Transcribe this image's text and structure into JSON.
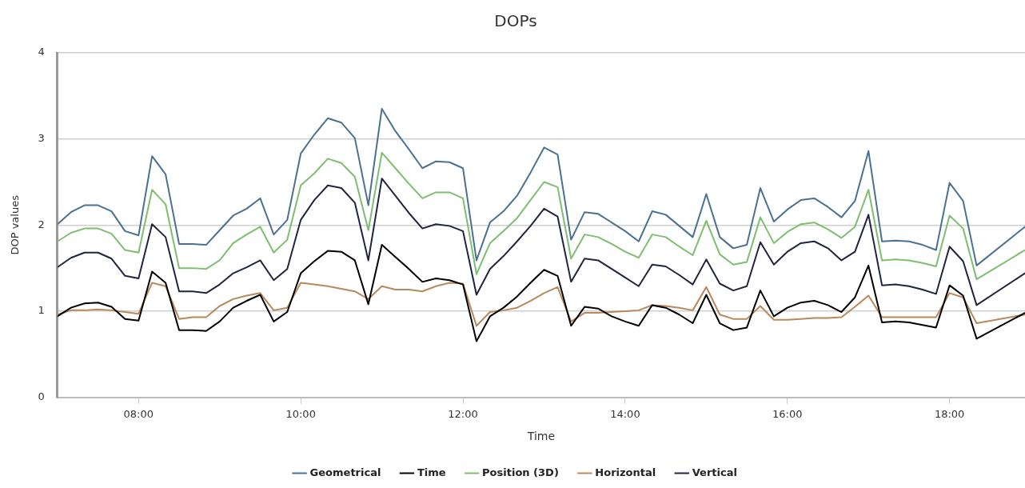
{
  "chart_data": {
    "type": "line",
    "title": "DOPs",
    "xlabel": "Time",
    "ylabel": "DOP values",
    "x": [
      7,
      7.1667,
      7.3333,
      7.5,
      7.6667,
      7.8333,
      8,
      8.1667,
      8.3333,
      8.5,
      8.6667,
      8.8333,
      9,
      9.1667,
      9.3333,
      9.5,
      9.6667,
      9.8333,
      10,
      10.1667,
      10.3333,
      10.5,
      10.6667,
      10.8333,
      11,
      11.1667,
      11.3333,
      11.5,
      11.6667,
      11.8333,
      12,
      12.1667,
      12.3333,
      12.5,
      12.6667,
      12.8333,
      13,
      13.1667,
      13.3333,
      13.5,
      13.6667,
      13.8333,
      14,
      14.1667,
      14.3333,
      14.5,
      14.6667,
      14.8333,
      15,
      15.1667,
      15.3333,
      15.5,
      15.6667,
      15.8333,
      16,
      16.1667,
      16.3333,
      16.5,
      16.6667,
      16.8333,
      17,
      17.1667,
      17.3333,
      17.5,
      17.6667,
      17.8333,
      18,
      18.1667,
      18.3333,
      18.93
    ],
    "series": [
      {
        "name": "Geometrical",
        "color": "#4a7191",
        "values": [
          2.01,
          2.15,
          2.23,
          2.23,
          2.16,
          1.93,
          1.88,
          2.8,
          2.59,
          1.78,
          1.78,
          1.77,
          1.94,
          2.11,
          2.19,
          2.31,
          1.89,
          2.06,
          2.83,
          3.05,
          3.24,
          3.19,
          3.01,
          2.23,
          3.35,
          3.09,
          2.88,
          2.66,
          2.74,
          2.73,
          2.66,
          1.59,
          2.03,
          2.16,
          2.34,
          2.61,
          2.9,
          2.82,
          1.83,
          2.15,
          2.13,
          2.03,
          1.93,
          1.81,
          2.16,
          2.12,
          1.99,
          1.86,
          2.36,
          1.86,
          1.73,
          1.77,
          2.43,
          2.04,
          2.18,
          2.29,
          2.31,
          2.21,
          2.09,
          2.28,
          2.86,
          1.81,
          1.82,
          1.81,
          1.77,
          1.71,
          2.49,
          2.28,
          1.53,
          1.98
        ]
      },
      {
        "name": "Time",
        "color": "#000000",
        "values": [
          0.94,
          1.04,
          1.09,
          1.1,
          1.05,
          0.91,
          0.89,
          1.46,
          1.33,
          0.78,
          0.78,
          0.77,
          0.88,
          1.04,
          1.12,
          1.19,
          0.88,
          0.99,
          1.44,
          1.58,
          1.7,
          1.69,
          1.59,
          1.08,
          1.77,
          1.63,
          1.49,
          1.34,
          1.38,
          1.36,
          1.31,
          0.65,
          0.94,
          1.04,
          1.17,
          1.33,
          1.48,
          1.41,
          0.83,
          1.05,
          1.03,
          0.94,
          0.88,
          0.83,
          1.07,
          1.04,
          0.96,
          0.86,
          1.19,
          0.86,
          0.78,
          0.81,
          1.24,
          0.94,
          1.04,
          1.1,
          1.12,
          1.07,
          0.99,
          1.16,
          1.53,
          0.87,
          0.88,
          0.87,
          0.84,
          0.81,
          1.3,
          1.18,
          0.68,
          0.98
        ]
      },
      {
        "name": "Position (3D)",
        "color": "#7dbf6e",
        "values": [
          1.81,
          1.91,
          1.96,
          1.96,
          1.9,
          1.71,
          1.68,
          2.41,
          2.24,
          1.5,
          1.5,
          1.49,
          1.59,
          1.79,
          1.89,
          1.98,
          1.68,
          1.83,
          2.46,
          2.6,
          2.77,
          2.72,
          2.56,
          1.94,
          2.84,
          2.66,
          2.48,
          2.31,
          2.38,
          2.38,
          2.31,
          1.43,
          1.79,
          1.93,
          2.08,
          2.29,
          2.5,
          2.44,
          1.61,
          1.89,
          1.86,
          1.78,
          1.69,
          1.62,
          1.89,
          1.86,
          1.75,
          1.65,
          2.05,
          1.66,
          1.54,
          1.57,
          2.09,
          1.79,
          1.92,
          2.01,
          2.03,
          1.95,
          1.85,
          1.98,
          2.41,
          1.59,
          1.6,
          1.59,
          1.56,
          1.52,
          2.11,
          1.96,
          1.37,
          1.71
        ]
      },
      {
        "name": "Horizontal",
        "color": "#b8895a",
        "values": [
          0.96,
          1.01,
          1.01,
          1.02,
          1.01,
          0.99,
          0.97,
          1.33,
          1.29,
          0.91,
          0.93,
          0.93,
          1.06,
          1.14,
          1.18,
          1.21,
          1.01,
          1.04,
          1.33,
          1.31,
          1.29,
          1.26,
          1.23,
          1.14,
          1.29,
          1.25,
          1.25,
          1.23,
          1.29,
          1.33,
          1.32,
          0.83,
          0.99,
          1.01,
          1.04,
          1.12,
          1.21,
          1.28,
          0.88,
          0.98,
          0.98,
          0.99,
          1,
          1.01,
          1.07,
          1.06,
          1.04,
          1.01,
          1.28,
          0.96,
          0.91,
          0.91,
          1.06,
          0.9,
          0.9,
          0.91,
          0.92,
          0.92,
          0.93,
          1.05,
          1.18,
          0.93,
          0.93,
          0.93,
          0.93,
          0.93,
          1.21,
          1.16,
          0.86,
          0.96
        ]
      },
      {
        "name": "Vertical",
        "color": "#1f2540",
        "values": [
          1.51,
          1.62,
          1.68,
          1.68,
          1.61,
          1.41,
          1.38,
          2.01,
          1.86,
          1.23,
          1.23,
          1.21,
          1.31,
          1.44,
          1.51,
          1.59,
          1.36,
          1.49,
          2.06,
          2.29,
          2.46,
          2.43,
          2.26,
          1.59,
          2.54,
          2.34,
          2.14,
          1.96,
          2.01,
          1.99,
          1.93,
          1.19,
          1.49,
          1.64,
          1.81,
          1.99,
          2.19,
          2.1,
          1.34,
          1.61,
          1.59,
          1.49,
          1.39,
          1.29,
          1.54,
          1.52,
          1.42,
          1.31,
          1.6,
          1.32,
          1.24,
          1.29,
          1.8,
          1.54,
          1.69,
          1.79,
          1.81,
          1.73,
          1.59,
          1.69,
          2.12,
          1.3,
          1.31,
          1.29,
          1.25,
          1.2,
          1.75,
          1.58,
          1.07,
          1.44
        ]
      }
    ],
    "xlim": [
      7,
      18.93
    ],
    "xticks": [
      {
        "value": 8,
        "label": "08:00"
      },
      {
        "value": 10,
        "label": "10:00"
      },
      {
        "value": 12,
        "label": "12:00"
      },
      {
        "value": 14,
        "label": "14:00"
      },
      {
        "value": 16,
        "label": "16:00"
      },
      {
        "value": 18,
        "label": "18:00"
      }
    ],
    "ylim": [
      0,
      4
    ],
    "yticks": [
      0,
      1,
      2,
      3,
      4
    ],
    "grid": "y",
    "legend": "bottom",
    "marker": "none",
    "line_style": "solid"
  }
}
